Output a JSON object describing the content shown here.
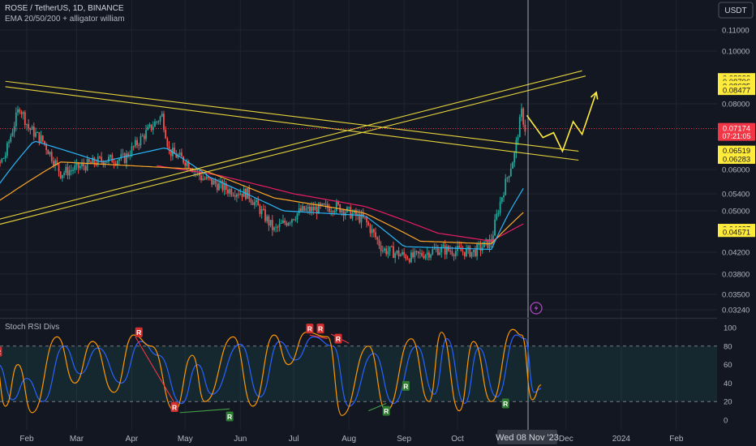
{
  "header": {
    "symbol_line": "ROSE / TetherUS, 1D, BINANCE",
    "indicator_line": "EMA 20/50/200 + alligator william",
    "currency_button": "USDT"
  },
  "colors": {
    "background": "#131722",
    "grid": "#1f2430",
    "up_candle": "#26a69a",
    "down_candle": "#ef5350",
    "trendline": "#e6d33c",
    "projection": "#ffeb3b",
    "ema20": "#29b6f6",
    "ema50": "#ffa726",
    "ema200": "#e91e63",
    "stoch_k": "#ff9800",
    "stoch_d": "#2962ff",
    "price_label": "#f23645",
    "highlight_label": "#ffeb3b"
  },
  "chart_data": [
    {
      "type": "candlestick",
      "title": "ROSE / TetherUS, 1D, BINANCE",
      "x_tick_labels": [
        "Feb",
        "Mar",
        "Apr",
        "May",
        "Jun",
        "Jul",
        "Aug",
        "Sep",
        "Oct",
        "Dec",
        "2024",
        "Feb"
      ],
      "y_axis": {
        "scale": "log",
        "tick_labels": [
          "0.11000",
          "0.10000",
          "0.08000",
          "0.06000",
          "0.05400",
          "0.05000",
          "0.04200",
          "0.03800",
          "0.03500",
          "0.03240"
        ]
      },
      "price_series": {
        "keypoints": [
          {
            "date": "2023-01-01",
            "price": 0.0495
          },
          {
            "date": "2023-01-10",
            "price": 0.056
          },
          {
            "date": "2023-01-20",
            "price": 0.064
          },
          {
            "date": "2023-01-28",
            "price": 0.079
          },
          {
            "date": "2023-02-02",
            "price": 0.072
          },
          {
            "date": "2023-02-10",
            "price": 0.068
          },
          {
            "date": "2023-02-20",
            "price": 0.059
          },
          {
            "date": "2023-03-05",
            "price": 0.061
          },
          {
            "date": "2023-03-15",
            "price": 0.0625
          },
          {
            "date": "2023-03-28",
            "price": 0.063
          },
          {
            "date": "2023-04-18",
            "price": 0.076
          },
          {
            "date": "2023-04-22",
            "price": 0.065
          },
          {
            "date": "2023-05-02",
            "price": 0.062
          },
          {
            "date": "2023-05-10",
            "price": 0.058
          },
          {
            "date": "2023-05-25",
            "price": 0.055
          },
          {
            "date": "2023-06-05",
            "price": 0.054
          },
          {
            "date": "2023-06-20",
            "price": 0.046
          },
          {
            "date": "2023-07-05",
            "price": 0.05
          },
          {
            "date": "2023-07-25",
            "price": 0.051
          },
          {
            "date": "2023-08-10",
            "price": 0.048
          },
          {
            "date": "2023-08-20",
            "price": 0.0425
          },
          {
            "date": "2023-09-05",
            "price": 0.041
          },
          {
            "date": "2023-09-20",
            "price": 0.0425
          },
          {
            "date": "2023-10-10",
            "price": 0.042
          },
          {
            "date": "2023-10-20",
            "price": 0.044
          },
          {
            "date": "2023-10-25",
            "price": 0.052
          },
          {
            "date": "2023-11-02",
            "price": 0.064
          },
          {
            "date": "2023-11-06",
            "price": 0.077
          },
          {
            "date": "2023-11-08",
            "price": 0.0717
          }
        ],
        "ema20": [
          {
            "date": "2023-01-01",
            "price": 0.047
          },
          {
            "date": "2023-02-05",
            "price": 0.068
          },
          {
            "date": "2023-03-15",
            "price": 0.062
          },
          {
            "date": "2023-04-20",
            "price": 0.066
          },
          {
            "date": "2023-05-15",
            "price": 0.058
          },
          {
            "date": "2023-06-25",
            "price": 0.05
          },
          {
            "date": "2023-08-10",
            "price": 0.049
          },
          {
            "date": "2023-09-01",
            "price": 0.043
          },
          {
            "date": "2023-10-20",
            "price": 0.0425
          },
          {
            "date": "2023-11-08",
            "price": 0.056
          }
        ],
        "ema50": [
          {
            "date": "2023-01-01",
            "price": 0.048
          },
          {
            "date": "2023-02-20",
            "price": 0.062
          },
          {
            "date": "2023-04-01",
            "price": 0.061
          },
          {
            "date": "2023-05-10",
            "price": 0.06
          },
          {
            "date": "2023-06-20",
            "price": 0.053
          },
          {
            "date": "2023-08-10",
            "price": 0.0495
          },
          {
            "date": "2023-09-10",
            "price": 0.044
          },
          {
            "date": "2023-10-20",
            "price": 0.0435
          },
          {
            "date": "2023-11-08",
            "price": 0.05
          }
        ],
        "ema200": [
          {
            "date": "2023-04-15",
            "price": 0.061
          },
          {
            "date": "2023-05-20",
            "price": 0.0585
          },
          {
            "date": "2023-07-01",
            "price": 0.054
          },
          {
            "date": "2023-08-10",
            "price": 0.051
          },
          {
            "date": "2023-09-20",
            "price": 0.0455
          },
          {
            "date": "2023-10-20",
            "price": 0.044
          },
          {
            "date": "2023-11-08",
            "price": 0.0475
          }
        ]
      },
      "trendlines": [
        {
          "from": {
            "date": "2023-01-20",
            "price": 0.088
          },
          "to": {
            "date": "2023-12-08",
            "price": 0.065
          }
        },
        {
          "from": {
            "date": "2023-01-20",
            "price": 0.086
          },
          "to": {
            "date": "2023-12-08",
            "price": 0.0625
          }
        },
        {
          "from": {
            "date": "2022-12-28",
            "price": 0.0465
          },
          "to": {
            "date": "2023-12-10",
            "price": 0.092
          }
        },
        {
          "from": {
            "date": "2022-12-28",
            "price": 0.0455
          },
          "to": {
            "date": "2023-12-12",
            "price": 0.09
          }
        }
      ],
      "projection": [
        {
          "date": "2023-11-09",
          "price": 0.076
        },
        {
          "date": "2023-11-18",
          "price": 0.069
        },
        {
          "date": "2023-11-24",
          "price": 0.0705
        },
        {
          "date": "2023-11-29",
          "price": 0.065
        },
        {
          "date": "2023-12-05",
          "price": 0.074
        },
        {
          "date": "2023-12-10",
          "price": 0.07
        },
        {
          "date": "2023-12-18",
          "price": 0.084
        }
      ],
      "price_labels": [
        {
          "value": 0.08923,
          "text": "0.08923",
          "kind": "highlight"
        },
        {
          "value": 0.08796,
          "text": "0.08796",
          "kind": "highlight"
        },
        {
          "value": 0.08635,
          "text": "0.08635",
          "kind": "highlight"
        },
        {
          "value": 0.08477,
          "text": "0.08477",
          "kind": "highlight"
        },
        {
          "value": 0.07174,
          "text": "0.07174",
          "countdown": "07:21:05",
          "kind": "current"
        },
        {
          "value": 0.06519,
          "text": "0.06519",
          "kind": "highlight"
        },
        {
          "value": 0.06283,
          "text": "0.06283",
          "kind": "highlight"
        },
        {
          "value": 0.04637,
          "text": "0.04637",
          "kind": "highlight"
        },
        {
          "value": 0.04571,
          "text": "0.04571",
          "kind": "highlight"
        }
      ],
      "crosshair": {
        "date": "2023-11-08",
        "label": "Wed 08 Nov '23"
      }
    },
    {
      "type": "line",
      "title": "Stoch RSI Divs",
      "y_axis": {
        "tick_labels": [
          "100",
          "80",
          "60",
          "40",
          "20",
          "0"
        ],
        "ylim": [
          0,
          100
        ],
        "bands": [
          20,
          80
        ]
      },
      "k_keypoints": [
        {
          "date": "2023-01-01",
          "value": 75
        },
        {
          "date": "2023-01-08",
          "value": 30
        },
        {
          "date": "2023-01-14",
          "value": 70
        },
        {
          "date": "2023-01-20",
          "value": 15
        },
        {
          "date": "2023-01-27",
          "value": 60
        },
        {
          "date": "2023-02-04",
          "value": 8
        },
        {
          "date": "2023-02-18",
          "value": 90
        },
        {
          "date": "2023-02-28",
          "value": 40
        },
        {
          "date": "2023-03-10",
          "value": 85
        },
        {
          "date": "2023-03-22",
          "value": 30
        },
        {
          "date": "2023-04-02",
          "value": 92
        },
        {
          "date": "2023-04-12",
          "value": 80
        },
        {
          "date": "2023-04-25",
          "value": 10
        },
        {
          "date": "2023-05-05",
          "value": 70
        },
        {
          "date": "2023-05-12",
          "value": 20
        },
        {
          "date": "2023-05-28",
          "value": 90
        },
        {
          "date": "2023-06-08",
          "value": 15
        },
        {
          "date": "2023-06-20",
          "value": 92
        },
        {
          "date": "2023-06-28",
          "value": 60
        },
        {
          "date": "2023-07-08",
          "value": 95
        },
        {
          "date": "2023-07-20",
          "value": 90
        },
        {
          "date": "2023-07-28",
          "value": 5
        },
        {
          "date": "2023-08-12",
          "value": 80
        },
        {
          "date": "2023-08-22",
          "value": 10
        },
        {
          "date": "2023-09-05",
          "value": 88
        },
        {
          "date": "2023-09-15",
          "value": 20
        },
        {
          "date": "2023-09-22",
          "value": 95
        },
        {
          "date": "2023-10-02",
          "value": 10
        },
        {
          "date": "2023-10-10",
          "value": 85
        },
        {
          "date": "2023-10-20",
          "value": 20
        },
        {
          "date": "2023-11-01",
          "value": 98
        },
        {
          "date": "2023-11-06",
          "value": 92
        },
        {
          "date": "2023-11-12",
          "value": 22
        },
        {
          "date": "2023-11-17",
          "value": 38
        }
      ],
      "d_keypoints": [
        {
          "date": "2023-01-01",
          "value": 70
        },
        {
          "date": "2023-01-10",
          "value": 40
        },
        {
          "date": "2023-01-16",
          "value": 60
        },
        {
          "date": "2023-01-24",
          "value": 22
        },
        {
          "date": "2023-02-01",
          "value": 45
        },
        {
          "date": "2023-02-10",
          "value": 20
        },
        {
          "date": "2023-02-22",
          "value": 80
        },
        {
          "date": "2023-03-03",
          "value": 50
        },
        {
          "date": "2023-03-13",
          "value": 78
        },
        {
          "date": "2023-03-26",
          "value": 40
        },
        {
          "date": "2023-04-06",
          "value": 85
        },
        {
          "date": "2023-04-16",
          "value": 70
        },
        {
          "date": "2023-04-29",
          "value": 18
        },
        {
          "date": "2023-05-08",
          "value": 60
        },
        {
          "date": "2023-05-16",
          "value": 28
        },
        {
          "date": "2023-06-01",
          "value": 82
        },
        {
          "date": "2023-06-12",
          "value": 25
        },
        {
          "date": "2023-06-23",
          "value": 85
        },
        {
          "date": "2023-07-02",
          "value": 65
        },
        {
          "date": "2023-07-12",
          "value": 90
        },
        {
          "date": "2023-07-23",
          "value": 80
        },
        {
          "date": "2023-08-01",
          "value": 15
        },
        {
          "date": "2023-08-15",
          "value": 72
        },
        {
          "date": "2023-08-26",
          "value": 18
        },
        {
          "date": "2023-09-08",
          "value": 80
        },
        {
          "date": "2023-09-18",
          "value": 28
        },
        {
          "date": "2023-09-25",
          "value": 88
        },
        {
          "date": "2023-10-05",
          "value": 18
        },
        {
          "date": "2023-10-13",
          "value": 78
        },
        {
          "date": "2023-10-23",
          "value": 25
        },
        {
          "date": "2023-11-03",
          "value": 92
        },
        {
          "date": "2023-11-08",
          "value": 88
        },
        {
          "date": "2023-11-13",
          "value": 30
        },
        {
          "date": "2023-11-17",
          "value": 34
        }
      ],
      "signal_text": {
        "regular": "R"
      },
      "bearish_divergences": [
        {
          "date": "2023-01-02",
          "value": 83
        },
        {
          "date": "2023-01-06",
          "value": 77
        },
        {
          "date": "2023-01-16",
          "value": 74
        },
        {
          "date": "2023-04-05",
          "value": 95
        },
        {
          "date": "2023-04-25",
          "value": 14
        },
        {
          "date": "2023-07-10",
          "value": 99
        },
        {
          "date": "2023-07-16",
          "value": 99
        },
        {
          "date": "2023-07-26",
          "value": 88
        }
      ],
      "bullish_divergences": [
        {
          "date": "2023-05-26",
          "value": 4
        },
        {
          "date": "2023-08-22",
          "value": 10
        },
        {
          "date": "2023-09-02",
          "value": 37
        },
        {
          "date": "2023-10-28",
          "value": 18
        }
      ],
      "divergence_lines": [
        {
          "kind": "bear",
          "from": {
            "date": "2023-04-03",
            "value": 90
          },
          "to": {
            "date": "2023-04-27",
            "value": 12
          }
        },
        {
          "kind": "bull",
          "from": {
            "date": "2023-04-28",
            "value": 8
          },
          "to": {
            "date": "2023-05-26",
            "value": 12
          }
        },
        {
          "kind": "bull",
          "from": {
            "date": "2023-08-12",
            "value": 10
          },
          "to": {
            "date": "2023-08-22",
            "value": 18
          }
        },
        {
          "kind": "bear",
          "from": {
            "date": "2023-07-10",
            "value": 92
          },
          "to": {
            "date": "2023-07-20",
            "value": 88
          }
        },
        {
          "kind": "bear",
          "from": {
            "date": "2023-07-22",
            "value": 93
          },
          "to": {
            "date": "2023-08-01",
            "value": 83
          }
        }
      ]
    }
  ]
}
